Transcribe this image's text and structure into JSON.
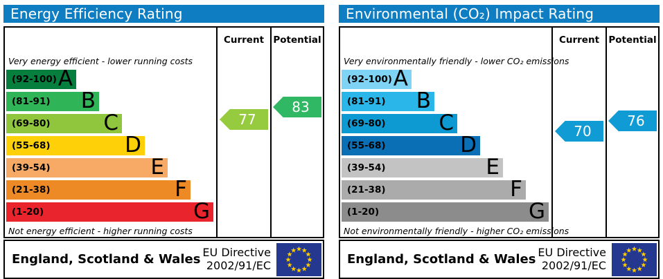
{
  "colors": {
    "header_blue": "#0f7dc2",
    "flag_blue": "#24388f",
    "flag_star_yellow": "#ffcc00",
    "border_black": "#000000",
    "arrow_text_white": "#ffffff"
  },
  "panels": [
    {
      "id": "energy-efficiency",
      "title": "Energy Efficiency Rating",
      "columns": {
        "current": "Current",
        "potential": "Potential"
      },
      "top_note": "Very energy efficient - lower running costs",
      "bottom_note": "Not energy efficient - higher running costs",
      "bands": [
        {
          "letter": "A",
          "range": "(92-100)",
          "low": 92,
          "high": 100,
          "color": "#067f3e"
        },
        {
          "letter": "B",
          "range": "(81-91)",
          "low": 81,
          "high": 91,
          "color": "#2fb457"
        },
        {
          "letter": "C",
          "range": "(69-80)",
          "low": 69,
          "high": 80,
          "color": "#8fc63d"
        },
        {
          "letter": "D",
          "range": "(55-68)",
          "low": 55,
          "high": 68,
          "color": "#fdd008"
        },
        {
          "letter": "E",
          "range": "(39-54)",
          "low": 39,
          "high": 54,
          "color": "#f6aa66"
        },
        {
          "letter": "F",
          "range": "(21-38)",
          "low": 21,
          "high": 38,
          "color": "#ee8a25"
        },
        {
          "letter": "G",
          "range": "(1-20)",
          "low": 1,
          "high": 20,
          "color": "#e9242c"
        }
      ],
      "current": {
        "value": 77,
        "color": "#97cb3f"
      },
      "potential": {
        "value": 83,
        "color": "#31b864"
      },
      "footer": {
        "region": "England, Scotland & Wales",
        "directive_line1": "EU Directive",
        "directive_line2": "2002/91/EC"
      }
    },
    {
      "id": "environmental-impact",
      "title": "Environmental (CO₂) Impact Rating",
      "columns": {
        "current": "Current",
        "potential": "Potential"
      },
      "top_note": "Very environmentally friendly - lower CO₂ emissions",
      "bottom_note": "Not environmentally friendly - higher CO₂ emissions",
      "bands": [
        {
          "letter": "A",
          "range": "(92-100)",
          "low": 92,
          "high": 100,
          "color": "#7fd3f4"
        },
        {
          "letter": "B",
          "range": "(81-91)",
          "low": 81,
          "high": 91,
          "color": "#2bb6e9"
        },
        {
          "letter": "C",
          "range": "(69-80)",
          "low": 69,
          "high": 80,
          "color": "#0d9ad2"
        },
        {
          "letter": "D",
          "range": "(55-68)",
          "low": 55,
          "high": 68,
          "color": "#0a6fb4"
        },
        {
          "letter": "E",
          "range": "(39-54)",
          "low": 39,
          "high": 54,
          "color": "#c3c3c3"
        },
        {
          "letter": "F",
          "range": "(21-38)",
          "low": 21,
          "high": 38,
          "color": "#ababab"
        },
        {
          "letter": "G",
          "range": "(1-20)",
          "low": 1,
          "high": 20,
          "color": "#8c8c8c"
        }
      ],
      "current": {
        "value": 70,
        "color": "#119bd4"
      },
      "potential": {
        "value": 76,
        "color": "#119bd4"
      },
      "footer": {
        "region": "England, Scotland & Wales",
        "directive_line1": "EU Directive",
        "directive_line2": "2002/91/EC"
      }
    }
  ],
  "chart_data": [
    {
      "type": "bar",
      "title": "Energy Efficiency Rating",
      "categories": [
        "A (92-100)",
        "B (81-91)",
        "C (69-80)",
        "D (55-68)",
        "E (39-54)",
        "F (21-38)",
        "G (1-20)"
      ],
      "band_ranges": [
        [
          92,
          100
        ],
        [
          81,
          91
        ],
        [
          69,
          80
        ],
        [
          55,
          68
        ],
        [
          39,
          54
        ],
        [
          21,
          38
        ],
        [
          1,
          20
        ]
      ],
      "series": [
        {
          "name": "Current",
          "values": [
            77
          ]
        },
        {
          "name": "Potential",
          "values": [
            83
          ]
        }
      ],
      "value_range": [
        1,
        100
      ],
      "annotations": [
        "Very energy efficient - lower running costs",
        "Not energy efficient - higher running costs",
        "England, Scotland & Wales",
        "EU Directive 2002/91/EC"
      ],
      "legend_position": "columns-right",
      "orientation": "horizontal-bands"
    },
    {
      "type": "bar",
      "title": "Environmental (CO₂) Impact Rating",
      "categories": [
        "A (92-100)",
        "B (81-91)",
        "C (69-80)",
        "D (55-68)",
        "E (39-54)",
        "F (21-38)",
        "G (1-20)"
      ],
      "band_ranges": [
        [
          92,
          100
        ],
        [
          81,
          91
        ],
        [
          69,
          80
        ],
        [
          55,
          68
        ],
        [
          39,
          54
        ],
        [
          21,
          38
        ],
        [
          1,
          20
        ]
      ],
      "series": [
        {
          "name": "Current",
          "values": [
            70
          ]
        },
        {
          "name": "Potential",
          "values": [
            76
          ]
        }
      ],
      "value_range": [
        1,
        100
      ],
      "annotations": [
        "Very environmentally friendly - lower CO₂ emissions",
        "Not environmentally friendly - higher CO₂ emissions",
        "England, Scotland & Wales",
        "EU Directive 2002/91/EC"
      ],
      "legend_position": "columns-right",
      "orientation": "horizontal-bands"
    }
  ]
}
